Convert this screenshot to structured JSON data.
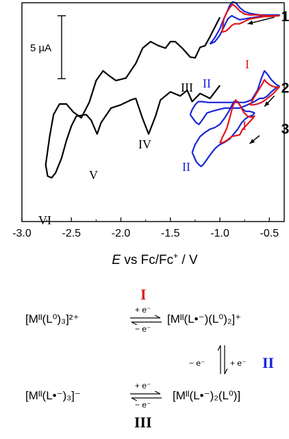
{
  "chart_data": {
    "type": "line",
    "xlabel_italic": "E",
    "xlabel_rest": " vs Fc/Fc",
    "xlabel_sup": "+",
    "xlabel_unit": " / V",
    "xlim": [
      -3.0,
      -0.35
    ],
    "xticks": [
      -3.0,
      -2.5,
      -2.0,
      -1.5,
      -1.0,
      -0.5
    ],
    "xtick_labels": [
      "-3.0",
      "-2.5",
      "-2.0",
      "-1.5",
      "-1.0",
      "-0.5"
    ],
    "ylim": [
      -27,
      0
    ],
    "y_units": "µA",
    "scale_bar": {
      "label": "5 µA",
      "value_uA": 5
    },
    "peak_labels": [
      {
        "text": "I",
        "color": "#e0161c",
        "x": -0.95
      },
      {
        "text": "II",
        "color": "#1726d8",
        "x": -1.1
      },
      {
        "text": "III",
        "color": "#000000",
        "x": -1.3
      },
      {
        "text": "IV",
        "color": "#000000",
        "x": -1.73
      },
      {
        "text": "V",
        "color": "#000000",
        "x": -2.25
      },
      {
        "text": "VI",
        "color": "#000000",
        "x": -2.65
      }
    ],
    "series": [
      {
        "key": "full_sweep",
        "color": "#000000",
        "x": [
          -1.0,
          -1.1,
          -1.2,
          -1.28,
          -1.33,
          -1.4,
          -1.5,
          -1.6,
          -1.65,
          -1.72,
          -1.78,
          -1.85,
          -1.9,
          -2.0,
          -2.1,
          -2.2,
          -2.24,
          -2.3,
          -2.35,
          -2.45,
          -2.5,
          -2.55,
          -2.6,
          -2.66,
          -2.7,
          -2.74,
          -2.76,
          -2.72,
          -2.68,
          -2.62,
          -2.55,
          -2.48,
          -2.4,
          -2.32,
          -2.25,
          -2.18,
          -2.12,
          -2.05,
          -1.95,
          -1.85,
          -1.78,
          -1.7,
          -1.62,
          -1.55,
          -1.5,
          -1.45,
          -1.38,
          -1.3,
          -1.25,
          -1.2,
          -1.15,
          -1.1,
          -1.05,
          -1.0
        ],
        "y": [
          -10.2,
          -11.8,
          -11.2,
          -12.2,
          -10.8,
          -11.5,
          -11.0,
          -12.0,
          -14.0,
          -16.2,
          -14.3,
          -11.8,
          -12.0,
          -12.6,
          -13.0,
          -14.8,
          -16.2,
          -14.5,
          -13.8,
          -14.0,
          -15.2,
          -17.0,
          -19.2,
          -21.0,
          -21.6,
          -21.4,
          -20.0,
          -16.5,
          -13.8,
          -12.5,
          -12.5,
          -13.5,
          -14.2,
          -12.3,
          -9.6,
          -8.4,
          -9.0,
          -9.6,
          -9.3,
          -7.5,
          -5.6,
          -4.8,
          -5.3,
          -5.6,
          -4.8,
          -4.8,
          -5.6,
          -6.7,
          -6.8,
          -5.5,
          -5.3,
          -4.2,
          -3.0,
          -1.8
        ]
      },
      {
        "key": "cv1_blue",
        "color": "#1726d8",
        "x": [
          -1.1,
          -1.05,
          -1.0,
          -0.96,
          -0.92,
          -0.9,
          -0.87,
          -0.84,
          -0.8,
          -0.75,
          -0.7,
          -0.65,
          -0.6,
          -0.55,
          -0.5,
          -0.45,
          -0.4,
          -0.45,
          -0.5,
          -0.55,
          -0.6,
          -0.65,
          -0.7,
          -0.75,
          -0.8,
          -0.85,
          -0.88,
          -0.92,
          -0.96,
          -1.0,
          -1.05,
          -1.1
        ],
        "y": [
          -5.1,
          -4.3,
          -3.2,
          -2.0,
          -0.9,
          -0.3,
          0.1,
          0.0,
          -0.6,
          -1.1,
          -1.3,
          -1.4,
          -1.5,
          -1.5,
          -1.5,
          -1.5,
          -1.5,
          -1.55,
          -1.6,
          -1.6,
          -1.7,
          -1.8,
          -1.9,
          -2.0,
          -2.1,
          -1.8,
          -1.6,
          -2.0,
          -3.0,
          -4.0,
          -4.8,
          -5.1
        ]
      },
      {
        "key": "cv1_red",
        "color": "#e0161c",
        "x": [
          -0.98,
          -0.97,
          -0.96,
          -0.93,
          -0.9,
          -0.87,
          -0.84,
          -0.8,
          -0.75,
          -0.7,
          -0.65,
          -0.6,
          -0.55,
          -0.5,
          -0.45,
          -0.4,
          -0.45,
          -0.5,
          -0.55,
          -0.6,
          -0.65,
          -0.7,
          -0.75,
          -0.8,
          -0.85,
          -0.88,
          -0.91,
          -0.94,
          -0.97,
          -0.98
        ],
        "y": [
          -3.6,
          -3.0,
          -2.0,
          -1.2,
          -0.6,
          -0.2,
          -0.5,
          -1.0,
          -1.4,
          -1.5,
          -1.5,
          -1.5,
          -1.6,
          -1.6,
          -1.6,
          -1.6,
          -1.65,
          -1.7,
          -1.7,
          -1.8,
          -1.9,
          -2.0,
          -2.3,
          -2.6,
          -2.6,
          -2.8,
          -3.2,
          -3.5,
          -3.6,
          -3.6
        ]
      },
      {
        "key": "cv2_blue",
        "color": "#1726d8",
        "x": [
          -1.3,
          -1.28,
          -1.25,
          -1.22,
          -1.18,
          -1.12,
          -1.05,
          -0.98,
          -0.9,
          -0.82,
          -0.75,
          -0.68,
          -0.62,
          -0.58,
          -0.55,
          -0.52,
          -0.48,
          -0.43,
          -0.4,
          -0.43,
          -0.48,
          -0.52,
          -0.56,
          -0.6,
          -0.65,
          -0.72,
          -0.8,
          -0.88,
          -0.95,
          -1.02,
          -1.08,
          -1.13,
          -1.18,
          -1.21,
          -1.24,
          -1.27,
          -1.3
        ],
        "y": [
          -13.8,
          -13.2,
          -12.6,
          -12.2,
          -12.2,
          -12.3,
          -12.3,
          -12.3,
          -12.3,
          -12.3,
          -12.3,
          -12.0,
          -10.8,
          -9.3,
          -8.4,
          -8.8,
          -9.5,
          -10.1,
          -10.3,
          -10.5,
          -11.0,
          -11.5,
          -11.8,
          -11.8,
          -12.2,
          -12.6,
          -13.0,
          -13.0,
          -13.0,
          -13.2,
          -13.4,
          -13.6,
          -14.5,
          -15.0,
          -14.8,
          -14.3,
          -13.8
        ]
      },
      {
        "key": "cv2_red",
        "color": "#e0161c",
        "x": [
          -0.7,
          -0.68,
          -0.66,
          -0.63,
          -0.6,
          -0.57,
          -0.55,
          -0.53,
          -0.5,
          -0.47,
          -0.44,
          -0.42,
          -0.4,
          -0.43,
          -0.46,
          -0.5,
          -0.54,
          -0.58,
          -0.62,
          -0.66,
          -0.69,
          -0.7
        ],
        "y": [
          -12.5,
          -12.3,
          -11.8,
          -11.2,
          -10.6,
          -10.0,
          -9.5,
          -9.8,
          -10.1,
          -10.3,
          -10.4,
          -10.4,
          -10.4,
          -10.8,
          -11.2,
          -11.6,
          -12.0,
          -12.3,
          -12.5,
          -12.6,
          -12.6,
          -12.5
        ]
      },
      {
        "key": "cv3_blue",
        "color": "#1726d8",
        "x": [
          -1.28,
          -1.25,
          -1.2,
          -1.15,
          -1.1,
          -1.05,
          -1.0,
          -0.95,
          -0.9,
          -0.86,
          -0.82,
          -0.78,
          -0.74,
          -0.7,
          -0.67,
          -0.65,
          -0.67,
          -0.7,
          -0.74,
          -0.78,
          -0.82,
          -0.86,
          -0.9,
          -0.95,
          -1.0,
          -1.05,
          -1.1,
          -1.14,
          -1.17,
          -1.19,
          -1.21,
          -1.24,
          -1.26,
          -1.28
        ],
        "y": [
          -18.5,
          -17.5,
          -16.5,
          -16.0,
          -15.6,
          -15.4,
          -15.0,
          -14.2,
          -13.2,
          -12.2,
          -12.2,
          -13.0,
          -13.4,
          -13.4,
          -13.5,
          -13.6,
          -13.9,
          -14.0,
          -14.3,
          -14.8,
          -15.6,
          -16.2,
          -16.8,
          -17.2,
          -17.5,
          -18.0,
          -18.8,
          -19.5,
          -20.0,
          -20.2,
          -20.0,
          -19.6,
          -19.0,
          -18.5
        ]
      },
      {
        "key": "cv3_red",
        "color": "#e0161c",
        "x": [
          -1.0,
          -0.97,
          -0.93,
          -0.9,
          -0.87,
          -0.84,
          -0.8,
          -0.76,
          -0.72,
          -0.69,
          -0.67,
          -0.65,
          -0.67,
          -0.7,
          -0.73,
          -0.77,
          -0.8,
          -0.84,
          -0.88,
          -0.92,
          -0.96,
          -1.0
        ],
        "y": [
          -17.3,
          -16.5,
          -15.5,
          -14.2,
          -12.8,
          -12.0,
          -12.6,
          -13.5,
          -14.0,
          -14.1,
          -14.1,
          -14.0,
          -14.3,
          -14.7,
          -15.1,
          -15.6,
          -16.3,
          -16.4,
          -16.5,
          -16.9,
          -17.2,
          -17.3
        ]
      }
    ],
    "trace_labels": [
      {
        "text": "1",
        "x": -0.38,
        "y": -1.6
      },
      {
        "text": "2",
        "x": -0.38,
        "y": -10.4
      },
      {
        "text": "3",
        "x": -0.38,
        "y": -15.5
      }
    ],
    "sweep_arrows": [
      {
        "x1": -0.45,
        "y1": -1.8,
        "x2": -0.72,
        "y2": -2.6
      },
      {
        "x1": -0.45,
        "y1": -11.5,
        "x2": -0.55,
        "y2": -12.8
      },
      {
        "x1": -0.6,
        "y1": -16.4,
        "x2": -0.7,
        "y2": -17.4
      }
    ]
  },
  "scheme": {
    "label_I": "I",
    "label_II": "II",
    "label_III": "III",
    "color_I": "#e0161c",
    "color_II": "#1726d8",
    "color_III": "#000000",
    "plus_e": "+ e⁻",
    "minus_e": "− e⁻",
    "species_1": "[Mᴵᴵ(L⁰)₃]²⁺",
    "species_2": "[Mᴵᴵ(L•⁻)(L⁰)₂]⁺",
    "species_3": "[Mᴵᴵ(L•⁻)₃]⁻",
    "species_4": "[Mᴵᴵ(L•⁻)₂(L⁰)]"
  }
}
